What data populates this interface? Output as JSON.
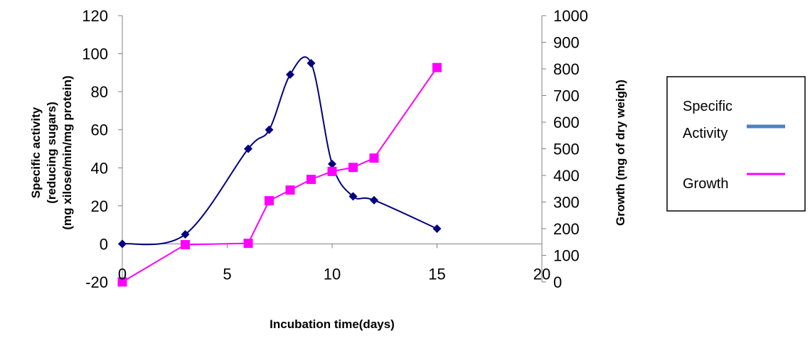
{
  "chart_data": {
    "type": "line",
    "xlabel": "Incubation time(days)",
    "ylabel_left": [
      "Specific activity",
      "(reducing sugars)",
      "(mg xilose/min/mg protein)"
    ],
    "ylabel_right": "Growth (mg of dry weigh)",
    "xlim": [
      0,
      20
    ],
    "ylim_left": [
      -20,
      120
    ],
    "ylim_right": [
      0,
      1000
    ],
    "x_ticks": [
      "0",
      "5",
      "10",
      "15",
      "20"
    ],
    "y_left_ticks": [
      "-20",
      "0",
      "20",
      "40",
      "60",
      "80",
      "100",
      "120"
    ],
    "y_right_ticks": [
      "0",
      "100",
      "200",
      "300",
      "400",
      "500",
      "600",
      "700",
      "800",
      "900",
      "1000"
    ],
    "grid": false,
    "legend_position": "right",
    "series": [
      {
        "name": "Specific Activity",
        "name_lines": [
          "Specific",
          "Activity"
        ],
        "axis": "left",
        "color": "#000080",
        "legend_color": "#4f81bd",
        "marker": "diamond",
        "smooth": true,
        "x": [
          0,
          3,
          6,
          7,
          8,
          9,
          10,
          11,
          12,
          15
        ],
        "y": [
          0,
          5,
          50,
          60,
          89,
          95,
          42,
          25,
          23,
          8
        ]
      },
      {
        "name": "Growth",
        "name_lines": [
          "Growth"
        ],
        "axis": "right",
        "color": "#ff00ff",
        "legend_color": "#ff00ff",
        "marker": "square",
        "smooth": false,
        "x": [
          0,
          3,
          6,
          7,
          8,
          9,
          10,
          11,
          12,
          15
        ],
        "y": [
          0,
          140,
          145,
          305,
          345,
          385,
          415,
          430,
          465,
          805
        ]
      }
    ]
  }
}
